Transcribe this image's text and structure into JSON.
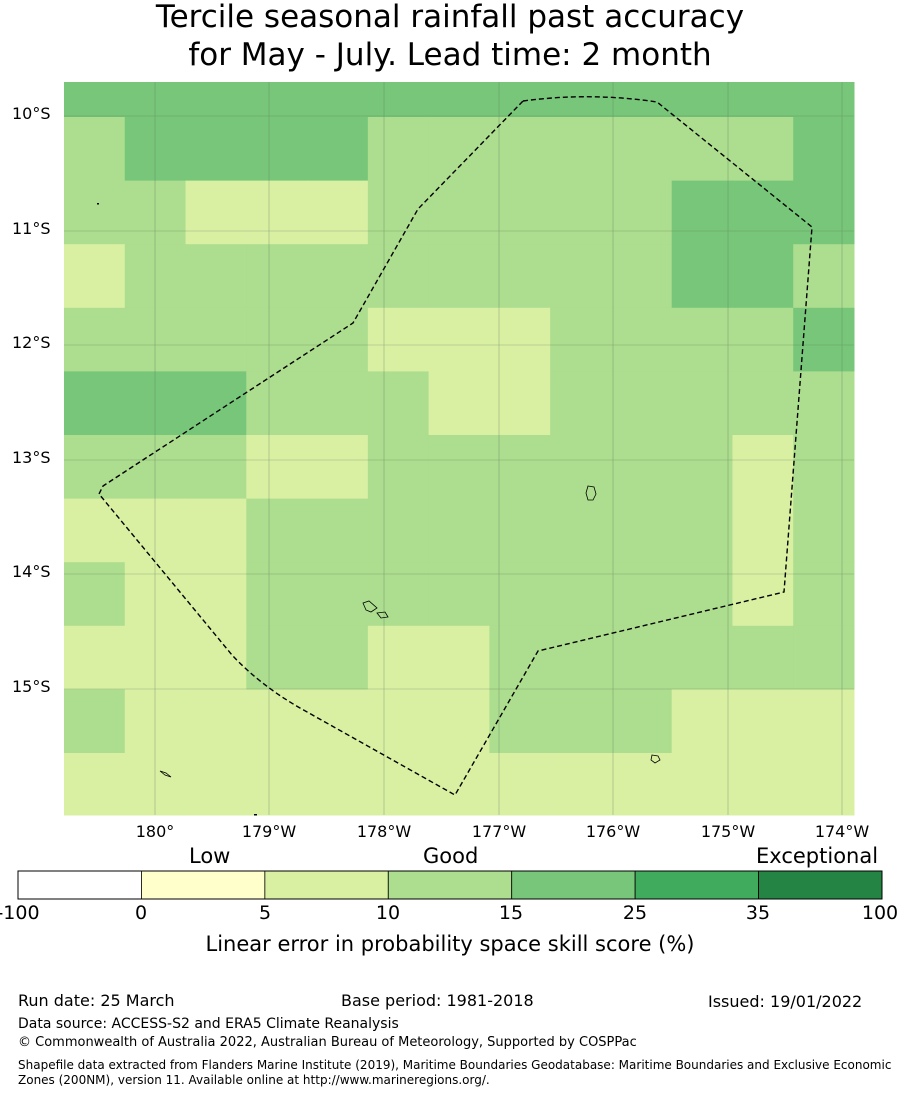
{
  "title": {
    "line1": "Tercile seasonal rainfall past accuracy",
    "line2": "for May - July. Lead time: 2 month"
  },
  "colors": {
    "-100_0": "#ffffff",
    "0_5": "#ffffcc",
    "5_10": "#d9f0a3",
    "10_15": "#addd8e",
    "15_25": "#78c679",
    "25_35": "#41ab5d",
    "35_100": "#238443"
  },
  "map": {
    "lat_labels": [
      "10°S",
      "11°S",
      "12°S",
      "13°S",
      "14°S",
      "15°S"
    ],
    "lon_labels": [
      "180°",
      "179°W",
      "178°W",
      "177°W",
      "176°W",
      "175°W",
      "174°W"
    ],
    "grid_classes": [
      [
        3,
        3,
        3,
        3,
        3,
        3,
        3,
        3,
        3,
        3,
        3,
        3,
        3
      ],
      [
        2,
        3,
        3,
        3,
        3,
        2,
        2,
        2,
        2,
        2,
        2,
        2,
        3
      ],
      [
        2,
        2,
        1,
        1,
        1,
        2,
        2,
        2,
        2,
        2,
        3,
        3,
        3
      ],
      [
        1,
        2,
        2,
        2,
        2,
        2,
        2,
        2,
        2,
        2,
        3,
        3,
        2
      ],
      [
        2,
        2,
        2,
        2,
        2,
        1,
        1,
        1,
        2,
        2,
        2,
        2,
        3
      ],
      [
        3,
        3,
        3,
        2,
        2,
        2,
        1,
        1,
        2,
        2,
        2,
        2,
        2
      ],
      [
        2,
        2,
        2,
        1,
        1,
        2,
        2,
        2,
        2,
        2,
        2,
        1,
        2
      ],
      [
        1,
        1,
        1,
        2,
        2,
        2,
        2,
        2,
        2,
        2,
        2,
        1,
        2
      ],
      [
        2,
        1,
        1,
        2,
        2,
        2,
        2,
        2,
        2,
        2,
        2,
        1,
        2
      ],
      [
        1,
        1,
        1,
        2,
        2,
        1,
        1,
        2,
        2,
        2,
        2,
        2,
        2
      ],
      [
        2,
        1,
        1,
        1,
        1,
        1,
        1,
        2,
        2,
        2,
        1,
        1,
        1
      ],
      [
        1,
        1,
        1,
        1,
        1,
        1,
        1,
        1,
        1,
        1,
        1,
        1,
        1
      ]
    ]
  },
  "legend": {
    "categories": [
      "Low",
      "Good",
      "Exceptional"
    ],
    "bins": [
      {
        "range": "-100 to 0",
        "color": "#ffffff"
      },
      {
        "range": "0 to 5",
        "color": "#ffffcc"
      },
      {
        "range": "5 to 10",
        "color": "#d9f0a3"
      },
      {
        "range": "10 to 15",
        "color": "#addd8e"
      },
      {
        "range": "15 to 25",
        "color": "#78c679"
      },
      {
        "range": "25 to 35",
        "color": "#41ab5d"
      },
      {
        "range": "35 to 100",
        "color": "#238443"
      }
    ],
    "ticks": [
      "-100",
      "0",
      "5",
      "10",
      "15",
      "25",
      "35",
      "100"
    ],
    "xlabel": "Linear error in probability space skill score (%)"
  },
  "footer": {
    "run_date": "Run date: 25 March",
    "base_period": "Base period: 1981-2018",
    "issued": "Issued: 19/01/2022",
    "data_source": "Data source: ACCESS-S2 and ERA5 Climate Reanalysis",
    "copyright": "© Commonwealth of Australia 2022, Australian Bureau of Meteorology, Supported by COSPPac",
    "shapefile": "Shapefile data extracted from Flanders Marine Institute (2019), Maritime Boundaries Geodatabase: Maritime Boundaries and Exclusive Economic Zones (200NM), version 11. Available online at http://www.marineregions.org/."
  }
}
